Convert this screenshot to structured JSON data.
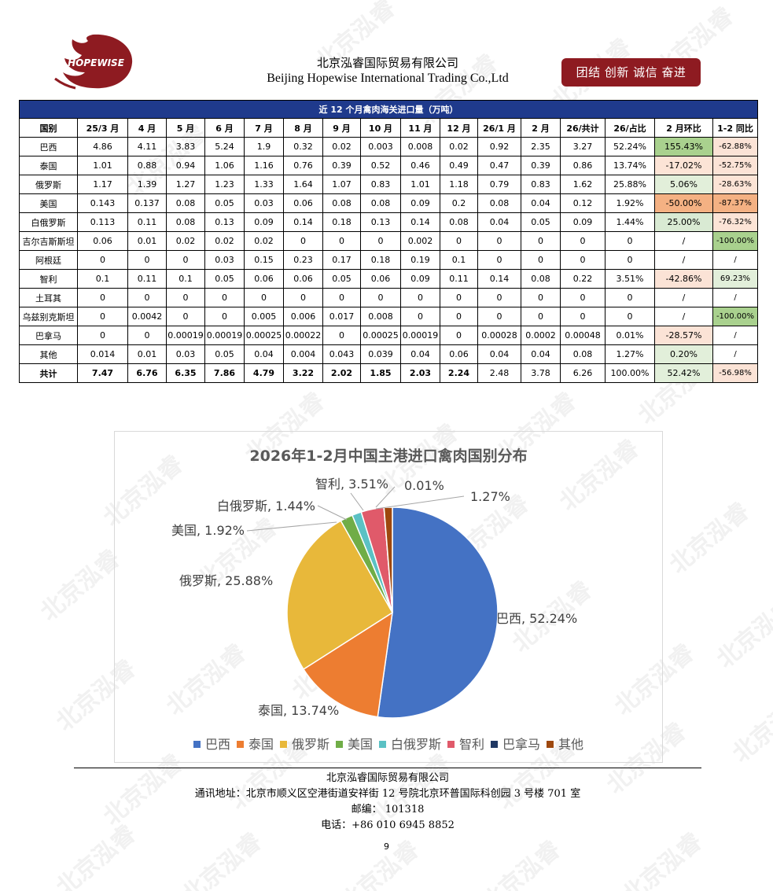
{
  "header": {
    "logo_text": "HOPEWISE",
    "company_cn": "北京泓睿国际贸易有限公司",
    "company_en": "Beijing Hopewise International Trading Co.,Ltd",
    "slogan": "团结 创新 诚信 奋进"
  },
  "watermark": "北京泓睿",
  "table": {
    "title": "近 12 个月禽肉海关进口量（万吨）",
    "headers": [
      "国别",
      "25/3 月",
      "4 月",
      "5 月",
      "6 月",
      "7 月",
      "8 月",
      "9 月",
      "10 月",
      "11 月",
      "12 月",
      "26/1 月",
      "2 月",
      "26/共计",
      "26/占比",
      "2 月环比",
      "1-2 同比"
    ],
    "rows": [
      {
        "country": "巴西",
        "values": [
          "4.86",
          "4.11",
          "3.83",
          "5.24",
          "1.9",
          "0.32",
          "0.02",
          "0.003",
          "0.008",
          "0.02",
          "0.92",
          "2.35",
          "3.27",
          "52.24%",
          "155.43%",
          "-62.88%"
        ]
      },
      {
        "country": "泰国",
        "values": [
          "1.01",
          "0.88",
          "0.94",
          "1.06",
          "1.16",
          "0.76",
          "0.39",
          "0.52",
          "0.46",
          "0.49",
          "0.47",
          "0.39",
          "0.86",
          "13.74%",
          "-17.02%",
          "-52.75%"
        ]
      },
      {
        "country": "俄罗斯",
        "values": [
          "1.17",
          "1.39",
          "1.27",
          "1.23",
          "1.33",
          "1.64",
          "1.07",
          "0.83",
          "1.01",
          "1.18",
          "0.79",
          "0.83",
          "1.62",
          "25.88%",
          "5.06%",
          "-28.63%"
        ]
      },
      {
        "country": "美国",
        "values": [
          "0.143",
          "0.137",
          "0.08",
          "0.05",
          "0.03",
          "0.06",
          "0.08",
          "0.08",
          "0.09",
          "0.2",
          "0.08",
          "0.04",
          "0.12",
          "1.92%",
          "-50.00%",
          "-87.37%"
        ]
      },
      {
        "country": "白俄罗斯",
        "values": [
          "0.113",
          "0.11",
          "0.08",
          "0.13",
          "0.09",
          "0.14",
          "0.18",
          "0.13",
          "0.14",
          "0.08",
          "0.04",
          "0.05",
          "0.09",
          "1.44%",
          "25.00%",
          "-76.32%"
        ]
      },
      {
        "country": "吉尔吉斯斯坦",
        "values": [
          "0.06",
          "0.01",
          "0.02",
          "0.02",
          "0.02",
          "0",
          "0",
          "0",
          "0.002",
          "0",
          "0",
          "0",
          "0",
          "0",
          "/",
          "-100.00%"
        ]
      },
      {
        "country": "阿根廷",
        "values": [
          "0",
          "0",
          "0",
          "0.03",
          "0.15",
          "0.23",
          "0.17",
          "0.18",
          "0.19",
          "0.1",
          "0",
          "0",
          "0",
          "0",
          "/",
          "/"
        ]
      },
      {
        "country": "智利",
        "values": [
          "0.1",
          "0.11",
          "0.1",
          "0.05",
          "0.06",
          "0.06",
          "0.05",
          "0.06",
          "0.09",
          "0.11",
          "0.14",
          "0.08",
          "0.22",
          "3.51%",
          "-42.86%",
          "69.23%"
        ]
      },
      {
        "country": "土耳其",
        "values": [
          "0",
          "0",
          "0",
          "0",
          "0",
          "0",
          "0",
          "0",
          "0",
          "0",
          "0",
          "0",
          "0",
          "0",
          "/",
          "/"
        ]
      },
      {
        "country": "乌兹别克斯坦",
        "values": [
          "0",
          "0.0042",
          "0",
          "0",
          "0.005",
          "0.006",
          "0.017",
          "0.008",
          "0",
          "0",
          "0",
          "0",
          "0",
          "0",
          "/",
          "-100.00%"
        ]
      },
      {
        "country": "巴拿马",
        "values": [
          "0",
          "0",
          "0.00019",
          "0.00019",
          "0.00025",
          "0.00022",
          "0",
          "0.00025",
          "0.00019",
          "0",
          "0.00028",
          "0.0002",
          "0.00048",
          "0.01%",
          "-28.57%",
          "/"
        ]
      },
      {
        "country": "其他",
        "values": [
          "0.014",
          "0.01",
          "0.03",
          "0.05",
          "0.04",
          "0.004",
          "0.043",
          "0.039",
          "0.04",
          "0.06",
          "0.04",
          "0.04",
          "0.08",
          "1.27%",
          "0.20%",
          "/"
        ]
      },
      {
        "country": "共计",
        "values": [
          "7.47",
          "6.76",
          "6.35",
          "7.86",
          "4.79",
          "3.22",
          "2.02",
          "1.85",
          "2.03",
          "2.24",
          "2.48",
          "3.78",
          "6.26",
          "100.00%",
          "52.42%",
          "-56.98%"
        ]
      }
    ]
  },
  "chart_data": {
    "type": "pie",
    "title": "2026年1-2月中国主港进口禽肉国别分布",
    "categories": [
      "巴西",
      "泰国",
      "俄罗斯",
      "美国",
      "白俄罗斯",
      "智利",
      "巴拿马",
      "其他"
    ],
    "values": [
      52.24,
      13.74,
      25.88,
      1.92,
      1.44,
      3.51,
      0.01,
      1.27
    ],
    "data_labels": [
      "巴西, 52.24%",
      "泰国, 13.74%",
      "俄罗斯, 25.88%",
      "美国, 1.92%",
      "白俄罗斯, 1.44%",
      "智利, 3.51%",
      "0.01%",
      "1.27%"
    ],
    "colors": [
      "#4472c4",
      "#ed7d31",
      "#e8b83a",
      "#70ad47",
      "#5bc1c4",
      "#e05a6a",
      "#203864",
      "#9e480e"
    ],
    "legend_position": "bottom"
  },
  "footer": {
    "company": "北京泓睿国际贸易有限公司",
    "address": "通讯地址：北京市顺义区空港街道安祥街 12 号院北京环普国际科创园 3 号楼 701 室",
    "postcode": "邮编： 101318",
    "phone": "电话：+86 010 6945 8852",
    "page": "9"
  }
}
